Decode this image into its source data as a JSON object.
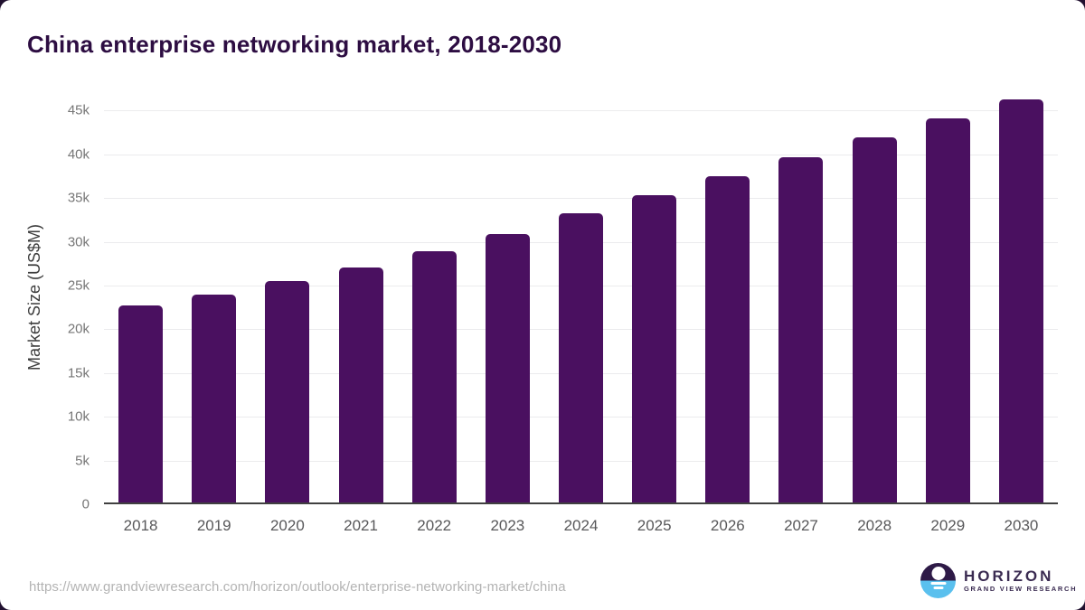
{
  "page": {
    "background_color": "#ffffff",
    "behind_color": "#20102f"
  },
  "header": {
    "title": "China enterprise networking market, 2018-2030",
    "title_color": "#2d0d42"
  },
  "chart_data": {
    "type": "bar",
    "title": "China enterprise networking market, 2018-2030",
    "categories": [
      "2018",
      "2019",
      "2020",
      "2021",
      "2022",
      "2023",
      "2024",
      "2025",
      "2026",
      "2027",
      "2028",
      "2029",
      "2030"
    ],
    "values": [
      22500,
      23800,
      25300,
      26900,
      28700,
      30700,
      33100,
      35100,
      37300,
      39500,
      41700,
      43900,
      46100
    ],
    "unit": "US$M",
    "xlabel": "",
    "ylabel": "Market Size (US$M)",
    "yticks": [
      0,
      5000,
      10000,
      15000,
      20000,
      25000,
      30000,
      35000,
      40000,
      45000
    ],
    "ytick_labels": [
      "0",
      "5k",
      "10k",
      "15k",
      "20k",
      "25k",
      "30k",
      "35k",
      "40k",
      "45k"
    ],
    "ylim": [
      0,
      47300
    ],
    "grid": true,
    "legend": false,
    "bar_color": "#4a1060",
    "gridline_color": "#ebebed",
    "axis_line_color": "#404040"
  },
  "footer": {
    "source_url": "https://www.grandviewresearch.com/horizon/outlook/enterprise-networking-market/china",
    "logo": {
      "name": "HORIZON",
      "subtitle": "GRAND VIEW RESEARCH",
      "mark_top_color": "#2e1a47",
      "mark_bottom_color": "#5ac0ee",
      "text_color": "#3a2b51"
    }
  }
}
